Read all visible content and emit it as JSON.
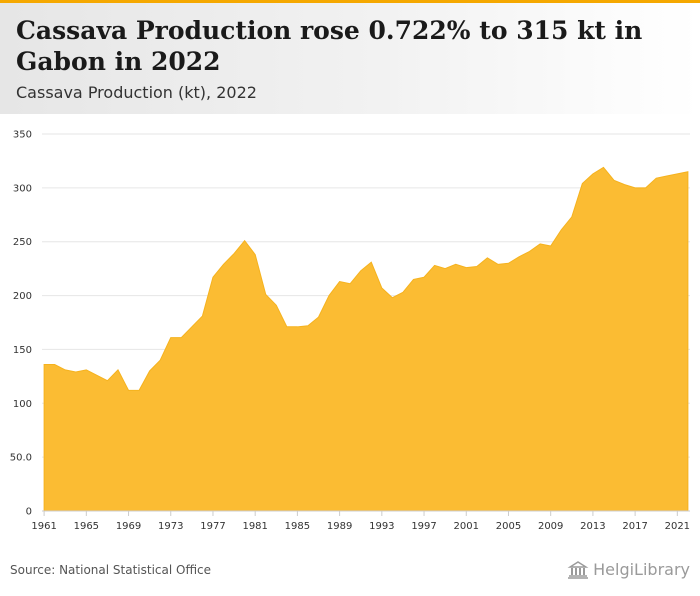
{
  "header": {
    "title": "Cassava Production rose 0.722% to 315 kt in Gabon in 2022",
    "subtitle": "Cassava Production (kt), 2022"
  },
  "footer": {
    "source": "Source: National Statistical Office",
    "brand": "HelgiLibrary",
    "brand_icon": "library-columns-icon"
  },
  "colors": {
    "accent": "#f5a800",
    "area_fill": "#fbbc33",
    "grid": "#e6e6e6"
  },
  "chart_data": {
    "type": "area",
    "title": "Cassava Production (kt), 2022",
    "xlabel": "",
    "ylabel": "",
    "grid": true,
    "ylim": [
      0,
      350
    ],
    "yticks": [
      0,
      50,
      100,
      150,
      200,
      250,
      300,
      350
    ],
    "ytick_labels": [
      "0",
      "50.0",
      "100",
      "150",
      "200",
      "250",
      "300",
      "350"
    ],
    "xticks": [
      1961,
      1965,
      1969,
      1973,
      1977,
      1981,
      1985,
      1989,
      1993,
      1997,
      2001,
      2005,
      2009,
      2013,
      2017,
      2021
    ],
    "xtick_labels": [
      "1961",
      "1965",
      "1969",
      "1973",
      "1977",
      "1981",
      "1985",
      "1989",
      "1993",
      "1997",
      "2001",
      "2005",
      "2009",
      "2013",
      "2017",
      "2021"
    ],
    "x": [
      1961,
      1962,
      1963,
      1964,
      1965,
      1966,
      1967,
      1968,
      1969,
      1970,
      1971,
      1972,
      1973,
      1974,
      1975,
      1976,
      1977,
      1978,
      1979,
      1980,
      1981,
      1982,
      1983,
      1984,
      1985,
      1986,
      1987,
      1988,
      1989,
      1990,
      1991,
      1992,
      1993,
      1994,
      1995,
      1996,
      1997,
      1998,
      1999,
      2000,
      2001,
      2002,
      2003,
      2004,
      2005,
      2006,
      2007,
      2008,
      2009,
      2010,
      2011,
      2012,
      2013,
      2014,
      2015,
      2016,
      2017,
      2018,
      2019,
      2020,
      2021,
      2022
    ],
    "series": [
      {
        "values": [
          136,
          136,
          131,
          129,
          131,
          126,
          121,
          131,
          112,
          112,
          130,
          140,
          161,
          161,
          171,
          181,
          217,
          229,
          239,
          251,
          238,
          201,
          191,
          171,
          171,
          172,
          180,
          200,
          213,
          211,
          223,
          231,
          207,
          198,
          203,
          215,
          217,
          228,
          225,
          229,
          226,
          227,
          235,
          229,
          230,
          236,
          241,
          248,
          246,
          261,
          273,
          304,
          313,
          319,
          307,
          303,
          300,
          300,
          309,
          311,
          313,
          315
        ]
      }
    ]
  }
}
